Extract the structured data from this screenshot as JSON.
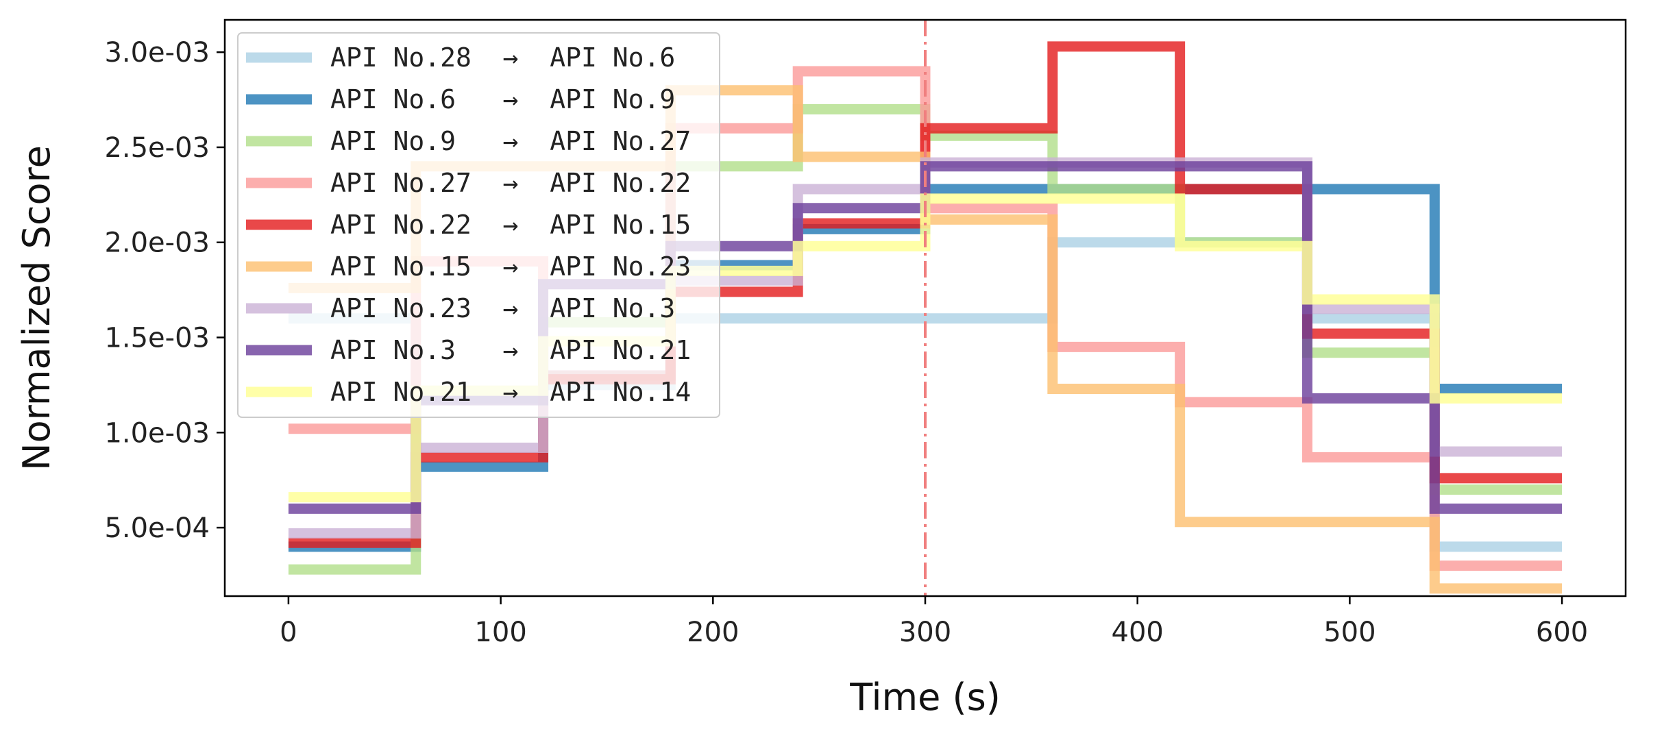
{
  "chart_data": {
    "type": "line",
    "step": "post",
    "xlabel": "Time (s)",
    "ylabel": "Normalized Score",
    "xlim": [
      -30,
      630
    ],
    "ylim": [
      0.00014,
      0.00317
    ],
    "x_ticks": [
      0,
      100,
      200,
      300,
      400,
      500,
      600
    ],
    "x_tick_labels": [
      "0",
      "100",
      "200",
      "300",
      "400",
      "500",
      "600"
    ],
    "y_ticks": [
      0.0005,
      0.001,
      0.0015,
      0.002,
      0.0025,
      0.003
    ],
    "y_tick_labels": [
      "5.0e-04",
      "1.0e-03",
      "1.5e-03",
      "2.0e-03",
      "2.5e-03",
      "3.0e-03"
    ],
    "grid": false,
    "legend_position": "top-left",
    "vline": {
      "x": 300,
      "color": "#f07f7f",
      "style": "dash-dot"
    },
    "x": [
      0,
      60,
      120,
      180,
      240,
      300,
      360,
      420,
      480,
      540,
      600
    ],
    "series": [
      {
        "name": "API No.28  →  API No.6",
        "color": "#a6cee3",
        "alpha": 0.75,
        "values": [
          0.0016,
          0.00118,
          0.00125,
          0.0016,
          0.0016,
          0.0016,
          0.002,
          0.002,
          0.0016,
          0.0004,
          0.0004
        ]
      },
      {
        "name": "API No.6   →  API No.9",
        "color": "#1f78b4",
        "alpha": 0.8,
        "values": [
          0.0004,
          0.00082,
          0.0013,
          0.00188,
          0.00207,
          0.00228,
          0.00228,
          0.00228,
          0.00228,
          0.00123,
          0.00123
        ]
      },
      {
        "name": "API No.9   →  API No.27",
        "color": "#b2df8a",
        "alpha": 0.8,
        "values": [
          0.00028,
          0.00122,
          0.00158,
          0.0024,
          0.0027,
          0.00256,
          0.00228,
          0.002,
          0.00142,
          0.0007,
          0.0007
        ]
      },
      {
        "name": "API No.27  →  API No.22",
        "color": "#fb9a99",
        "alpha": 0.8,
        "values": [
          0.00102,
          0.0019,
          0.0013,
          0.0026,
          0.0029,
          0.00218,
          0.00145,
          0.00116,
          0.00087,
          0.0003,
          0.0003
        ]
      },
      {
        "name": "API No.22  →  API No.15",
        "color": "#e31a1c",
        "alpha": 0.8,
        "values": [
          0.00042,
          0.00087,
          0.00128,
          0.00174,
          0.0021,
          0.0026,
          0.00303,
          0.00228,
          0.00152,
          0.00076,
          0.00076
        ]
      },
      {
        "name": "API No.15  →  API No.23",
        "color": "#fdbf6f",
        "alpha": 0.8,
        "values": [
          0.00176,
          0.0024,
          0.0024,
          0.0028,
          0.00245,
          0.00212,
          0.00123,
          0.00053,
          0.00053,
          0.00018,
          0.00018
        ]
      },
      {
        "name": "API No.23  →  API No.3",
        "color": "#cab2d6",
        "alpha": 0.8,
        "values": [
          0.00047,
          0.00092,
          0.00178,
          0.0018,
          0.00228,
          0.00242,
          0.00242,
          0.00242,
          0.00165,
          0.0009,
          0.0009
        ]
      },
      {
        "name": "API No.3   →  API No.21",
        "color": "#6a3d9a",
        "alpha": 0.8,
        "values": [
          0.0006,
          0.00117,
          0.00178,
          0.00198,
          0.00218,
          0.0024,
          0.0024,
          0.0024,
          0.00118,
          0.0006,
          0.0006
        ]
      },
      {
        "name": "API No.21  →  API No.14",
        "color": "#ffff99",
        "alpha": 0.85,
        "values": [
          0.00066,
          0.00122,
          0.00148,
          0.00185,
          0.00198,
          0.00223,
          0.00223,
          0.00198,
          0.0017,
          0.00118,
          0.00118
        ]
      }
    ]
  }
}
